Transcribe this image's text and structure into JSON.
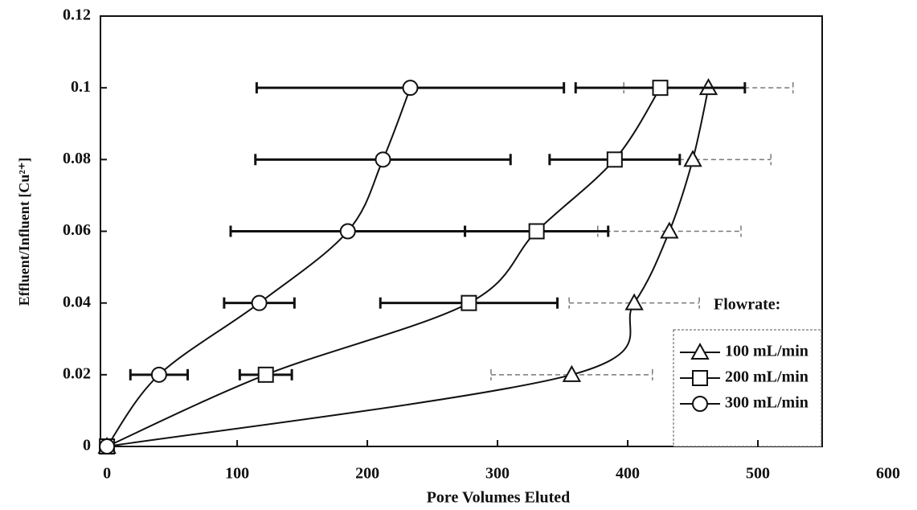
{
  "chart_data": {
    "type": "scatter",
    "xlabel": "Pore Volumes Eluted",
    "ylabel": "Effluent/Influent [Cu²⁺]",
    "xlim": [
      -5,
      600
    ],
    "xticks": [
      0,
      100,
      200,
      300,
      400,
      500,
      600
    ],
    "ylim": [
      0,
      0.12
    ],
    "yticks": [
      0,
      0.02,
      0.04,
      0.06,
      0.08,
      0.1,
      0.12
    ],
    "legend_title": "Flowrate:",
    "legend": "lower right",
    "series": [
      {
        "name": "100 mL/min",
        "color": "#111111",
        "marker": "triangle",
        "error_dash": true,
        "x": [
          0,
          357,
          405,
          432,
          450,
          462
        ],
        "values": [
          0,
          0.02,
          0.04,
          0.06,
          0.08,
          0.1
        ],
        "xerr": [
          null,
          62,
          50,
          55,
          60,
          65
        ]
      },
      {
        "name": "200 mL/min",
        "color": "#111111",
        "marker": "square",
        "error_dash": false,
        "x": [
          0,
          122,
          278,
          330,
          390,
          425
        ],
        "values": [
          0,
          0.02,
          0.04,
          0.06,
          0.08,
          0.1
        ],
        "xerr": [
          null,
          20,
          68,
          55,
          50,
          65
        ]
      },
      {
        "name": "300 mL/min",
        "color": "#111111",
        "marker": "circle",
        "error_dash": false,
        "x": [
          0,
          40,
          117,
          185,
          212,
          233
        ],
        "values": [
          0,
          0.02,
          0.04,
          0.06,
          0.08,
          0.1
        ],
        "xerr": [
          null,
          22,
          27,
          90,
          98,
          118
        ]
      }
    ]
  }
}
